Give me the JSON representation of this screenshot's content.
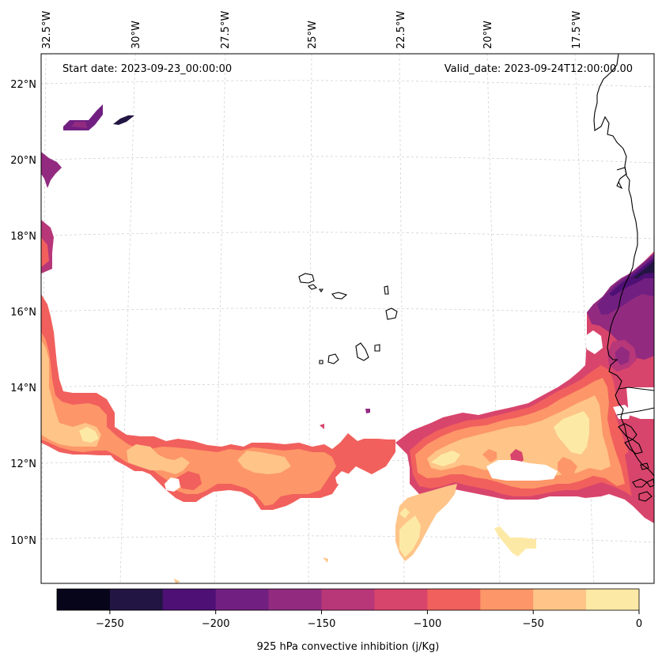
{
  "map": {
    "start_label": "Start date: 2023-09-23_00:00:00",
    "valid_label": "Valid_date: 2023-09-24T12:00:00.00",
    "lon_labels": [
      "32.5°W",
      "30°W",
      "27.5°W",
      "25°W",
      "22.5°W",
      "20°W",
      "17.5°W"
    ],
    "lat_labels": [
      "22°N",
      "20°N",
      "18°N",
      "16°N",
      "14°N",
      "12°N",
      "10°N"
    ]
  },
  "colorbar": {
    "label": "925 hPa convective inhibition (j/Kg)",
    "tick_labels": [
      "−250",
      "−200",
      "−150",
      "−100",
      "−50",
      "0"
    ],
    "levels": [
      -275,
      -250,
      -225,
      -200,
      -175,
      -150,
      -125,
      -100,
      -75,
      -50,
      -25,
      0
    ],
    "colors": [
      "#06051a",
      "#231543",
      "#4e1075",
      "#711f81",
      "#922b80",
      "#b73779",
      "#d8456c",
      "#f1605d",
      "#fd9668",
      "#fec488",
      "#fde9a6"
    ]
  },
  "colors": {
    "frame": "#000000",
    "gridline": "#cccccc",
    "coastline": "#000000"
  }
}
